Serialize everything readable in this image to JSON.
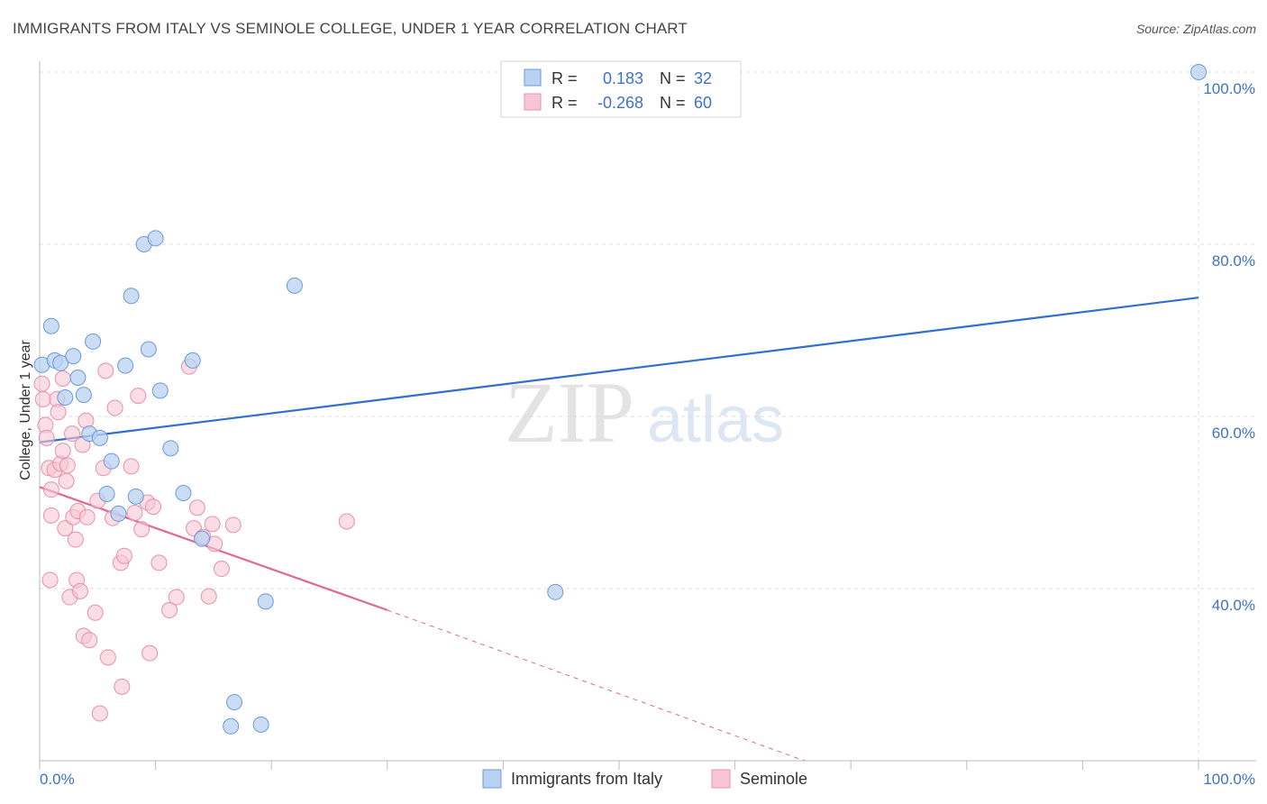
{
  "header": {
    "title": "IMMIGRANTS FROM ITALY VS SEMINOLE COLLEGE, UNDER 1 YEAR CORRELATION CHART",
    "source": "Source: ZipAtlas.com"
  },
  "watermark": {
    "zip": "ZIP",
    "atlas": "atlas"
  },
  "colors": {
    "blue_fill": "#b9d2f2",
    "blue_stroke": "#6a9ad8",
    "blue_line": "#2f6fcf",
    "pink_fill": "#f7c6d4",
    "pink_stroke": "#e890ab",
    "pink_line": "#e06890",
    "value_text": "#3d72c8",
    "grid": "#dcdcdc"
  },
  "legend": {
    "rows": [
      {
        "r_label": "R =",
        "r_value": "0.183",
        "n_label": "N =",
        "n_value": "32"
      },
      {
        "r_label": "R =",
        "r_value": "-0.268",
        "n_label": "N =",
        "n_value": "60"
      }
    ]
  },
  "chart_data": {
    "type": "scatter",
    "title": "IMMIGRANTS FROM ITALY VS SEMINOLE COLLEGE, UNDER 1 YEAR CORRELATION CHART",
    "xlabel": "",
    "ylabel": "College, Under 1 year",
    "xlim": [
      0,
      100
    ],
    "ylim": [
      18,
      102
    ],
    "x_tick_labels": {
      "left": "0.0%",
      "right": "100.0%"
    },
    "y_ticks": [
      {
        "value": 40,
        "label": "40.0%"
      },
      {
        "value": 60,
        "label": "60.0%"
      },
      {
        "value": 80,
        "label": "80.0%"
      },
      {
        "value": 100,
        "label": "100.0%"
      }
    ],
    "series": [
      {
        "name": "Immigrants from Italy",
        "color": "blue",
        "points": [
          [
            0.2,
            66.0
          ],
          [
            1.0,
            70.5
          ],
          [
            1.3,
            66.5
          ],
          [
            1.8,
            66.2
          ],
          [
            2.2,
            62.2
          ],
          [
            2.9,
            67.0
          ],
          [
            3.3,
            64.5
          ],
          [
            3.8,
            62.5
          ],
          [
            4.3,
            58.0
          ],
          [
            4.6,
            68.7
          ],
          [
            5.2,
            57.5
          ],
          [
            5.8,
            51.0
          ],
          [
            6.2,
            54.8
          ],
          [
            6.8,
            48.7
          ],
          [
            7.4,
            65.9
          ],
          [
            7.9,
            74.0
          ],
          [
            8.3,
            50.7
          ],
          [
            9.0,
            80.0
          ],
          [
            9.4,
            67.8
          ],
          [
            10.0,
            80.7
          ],
          [
            10.4,
            63.0
          ],
          [
            11.3,
            56.3
          ],
          [
            12.4,
            51.1
          ],
          [
            13.2,
            66.5
          ],
          [
            14.0,
            45.8
          ],
          [
            16.5,
            24.0
          ],
          [
            16.8,
            26.8
          ],
          [
            19.1,
            24.2
          ],
          [
            19.5,
            38.5
          ],
          [
            22.0,
            75.2
          ],
          [
            44.5,
            39.6
          ],
          [
            100.0,
            100.0
          ]
        ],
        "trend": {
          "x": [
            0,
            100
          ],
          "y": [
            57.0,
            73.8
          ]
        }
      },
      {
        "name": "Seminole",
        "color": "pink",
        "points": [
          [
            0.2,
            63.8
          ],
          [
            0.3,
            62.0
          ],
          [
            0.5,
            59.0
          ],
          [
            0.6,
            57.5
          ],
          [
            0.8,
            54.0
          ],
          [
            1.0,
            51.5
          ],
          [
            1.0,
            48.5
          ],
          [
            1.3,
            53.8
          ],
          [
            1.5,
            62.0
          ],
          [
            1.6,
            60.5
          ],
          [
            1.8,
            54.5
          ],
          [
            2.0,
            64.4
          ],
          [
            2.0,
            56.0
          ],
          [
            2.2,
            47.0
          ],
          [
            2.4,
            54.3
          ],
          [
            2.6,
            39.0
          ],
          [
            2.8,
            58.0
          ],
          [
            2.9,
            48.3
          ],
          [
            3.1,
            45.7
          ],
          [
            3.2,
            41.0
          ],
          [
            3.3,
            49.0
          ],
          [
            3.5,
            39.7
          ],
          [
            3.7,
            56.7
          ],
          [
            3.8,
            34.5
          ],
          [
            4.1,
            48.3
          ],
          [
            4.3,
            34.0
          ],
          [
            4.8,
            37.2
          ],
          [
            5.0,
            50.2
          ],
          [
            5.2,
            25.5
          ],
          [
            5.5,
            54.0
          ],
          [
            5.7,
            65.3
          ],
          [
            5.9,
            32.0
          ],
          [
            6.3,
            48.2
          ],
          [
            6.5,
            61.0
          ],
          [
            7.0,
            43.0
          ],
          [
            7.1,
            28.6
          ],
          [
            7.3,
            43.8
          ],
          [
            7.9,
            54.2
          ],
          [
            8.2,
            48.8
          ],
          [
            8.5,
            62.4
          ],
          [
            8.8,
            46.9
          ],
          [
            9.3,
            50.0
          ],
          [
            9.5,
            32.5
          ],
          [
            10.3,
            43.0
          ],
          [
            11.2,
            37.5
          ],
          [
            11.8,
            39.0
          ],
          [
            12.9,
            65.8
          ],
          [
            13.3,
            47.0
          ],
          [
            13.6,
            49.4
          ],
          [
            14.1,
            46.0
          ],
          [
            14.6,
            39.1
          ],
          [
            14.9,
            47.5
          ],
          [
            15.1,
            45.2
          ],
          [
            15.7,
            42.3
          ],
          [
            16.7,
            47.4
          ],
          [
            26.5,
            47.8
          ],
          [
            0.9,
            41.0
          ],
          [
            2.3,
            52.5
          ],
          [
            4.0,
            59.5
          ],
          [
            9.8,
            49.5
          ]
        ],
        "trend": {
          "x": [
            0,
            30
          ],
          "y": [
            51.8,
            37.5
          ]
        },
        "trend_dashed": {
          "x": [
            30,
            66
          ],
          "y": [
            37.5,
            20.0
          ]
        }
      }
    ],
    "legend_labels": [
      "Immigrants from Italy",
      "Seminole"
    ],
    "legend_position": "bottom"
  }
}
